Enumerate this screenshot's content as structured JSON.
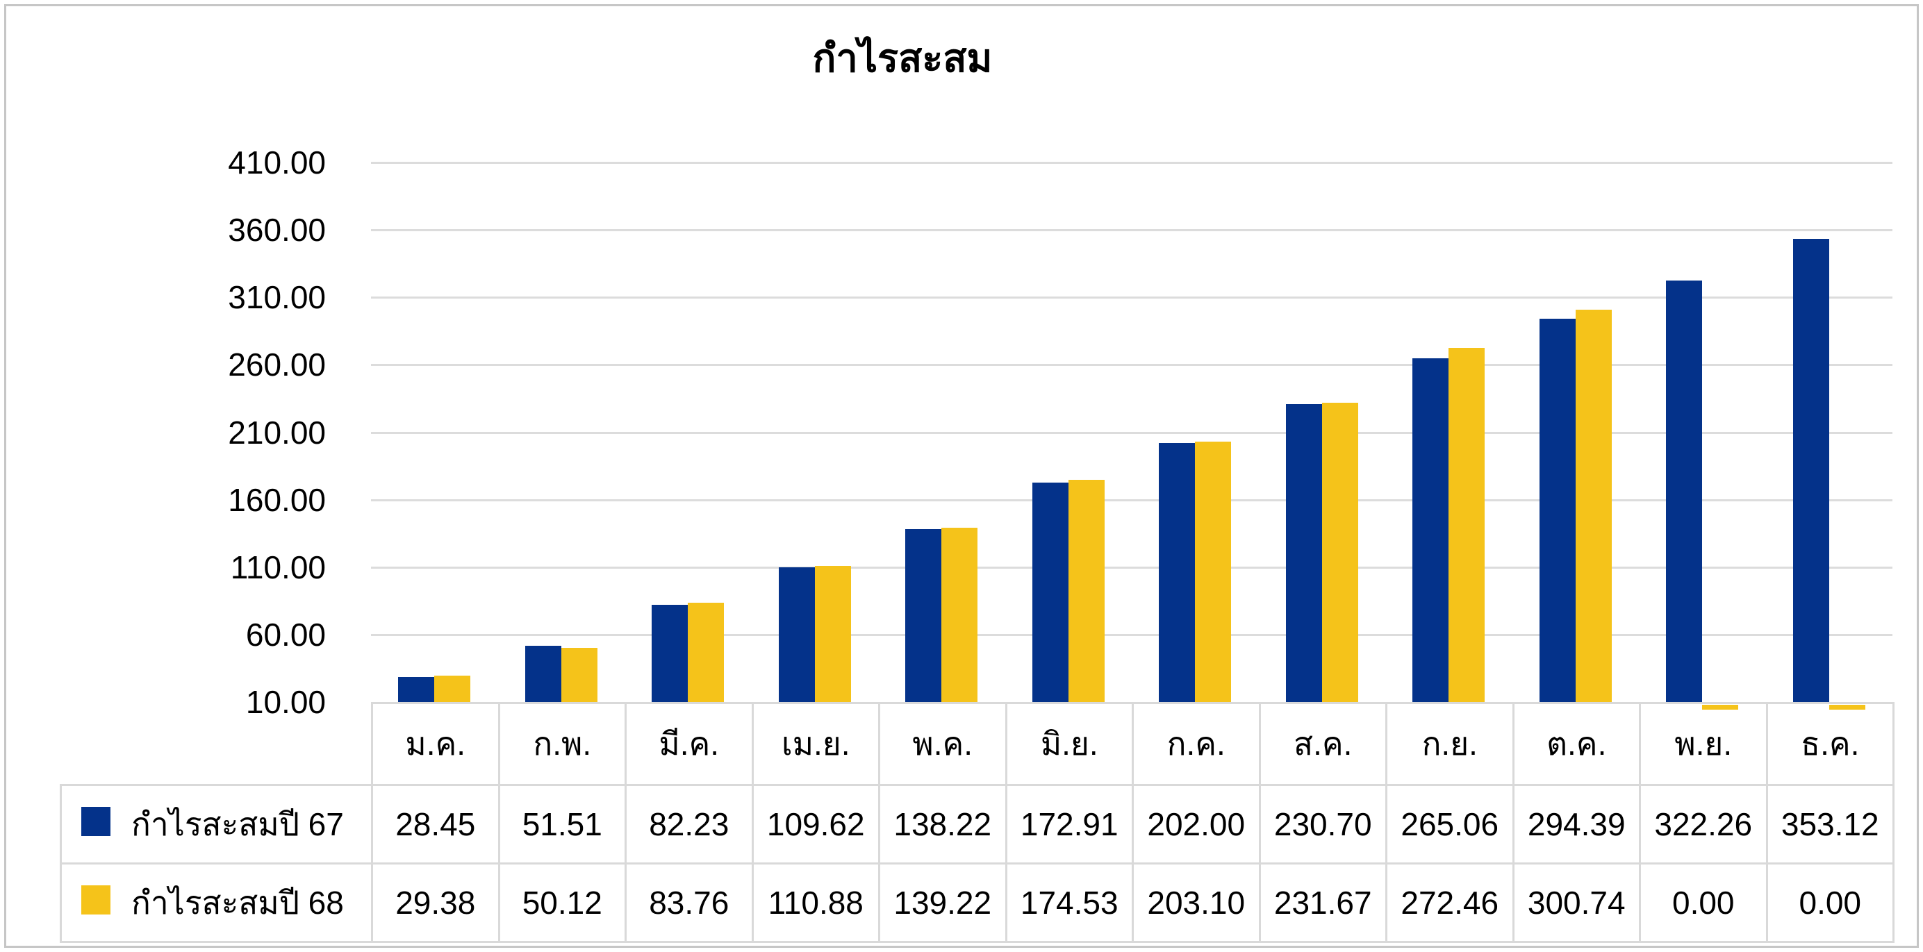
{
  "chart_data": {
    "type": "bar",
    "title": "กำไรสะสม",
    "categories": [
      "ม.ค.",
      "ก.พ.",
      "มี.ค.",
      "เม.ย.",
      "พ.ค.",
      "มิ.ย.",
      "ก.ค.",
      "ส.ค.",
      "ก.ย.",
      "ต.ค.",
      "พ.ย.",
      "ธ.ค."
    ],
    "series": [
      {
        "name": "กำไรสะสมปี 67",
        "color": "#04328A",
        "values": [
          28.45,
          51.51,
          82.23,
          109.62,
          138.22,
          172.91,
          202.0,
          230.7,
          265.06,
          294.39,
          322.26,
          353.12
        ],
        "display": [
          "28.45",
          "51.51",
          "82.23",
          "109.62",
          "138.22",
          "172.91",
          "202.00",
          "230.70",
          "265.06",
          "294.39",
          "322.26",
          "353.12"
        ]
      },
      {
        "name": "กำไรสะสมปี 68",
        "color": "#F5C31A",
        "values": [
          29.38,
          50.12,
          83.76,
          110.88,
          139.22,
          174.53,
          203.1,
          231.67,
          272.46,
          300.74,
          0.0,
          0.0
        ],
        "display": [
          "29.38",
          "50.12",
          "83.76",
          "110.88",
          "139.22",
          "174.53",
          "203.10",
          "231.67",
          "272.46",
          "300.74",
          "0.00",
          "0.00"
        ]
      }
    ],
    "y_axis": {
      "min": 10,
      "max": 410,
      "step": 50,
      "tick_labels": [
        "410.00",
        "360.00",
        "310.00",
        "260.00",
        "210.00",
        "160.00",
        "110.00",
        "60.00",
        "10.00"
      ]
    },
    "grid": true,
    "legend_position": "table-left",
    "gridline_color": "#DCDCDC",
    "table_border_color": "#D9D9D9",
    "frame_border_color": "#C6C6C6",
    "ylim": [
      10,
      410
    ]
  }
}
